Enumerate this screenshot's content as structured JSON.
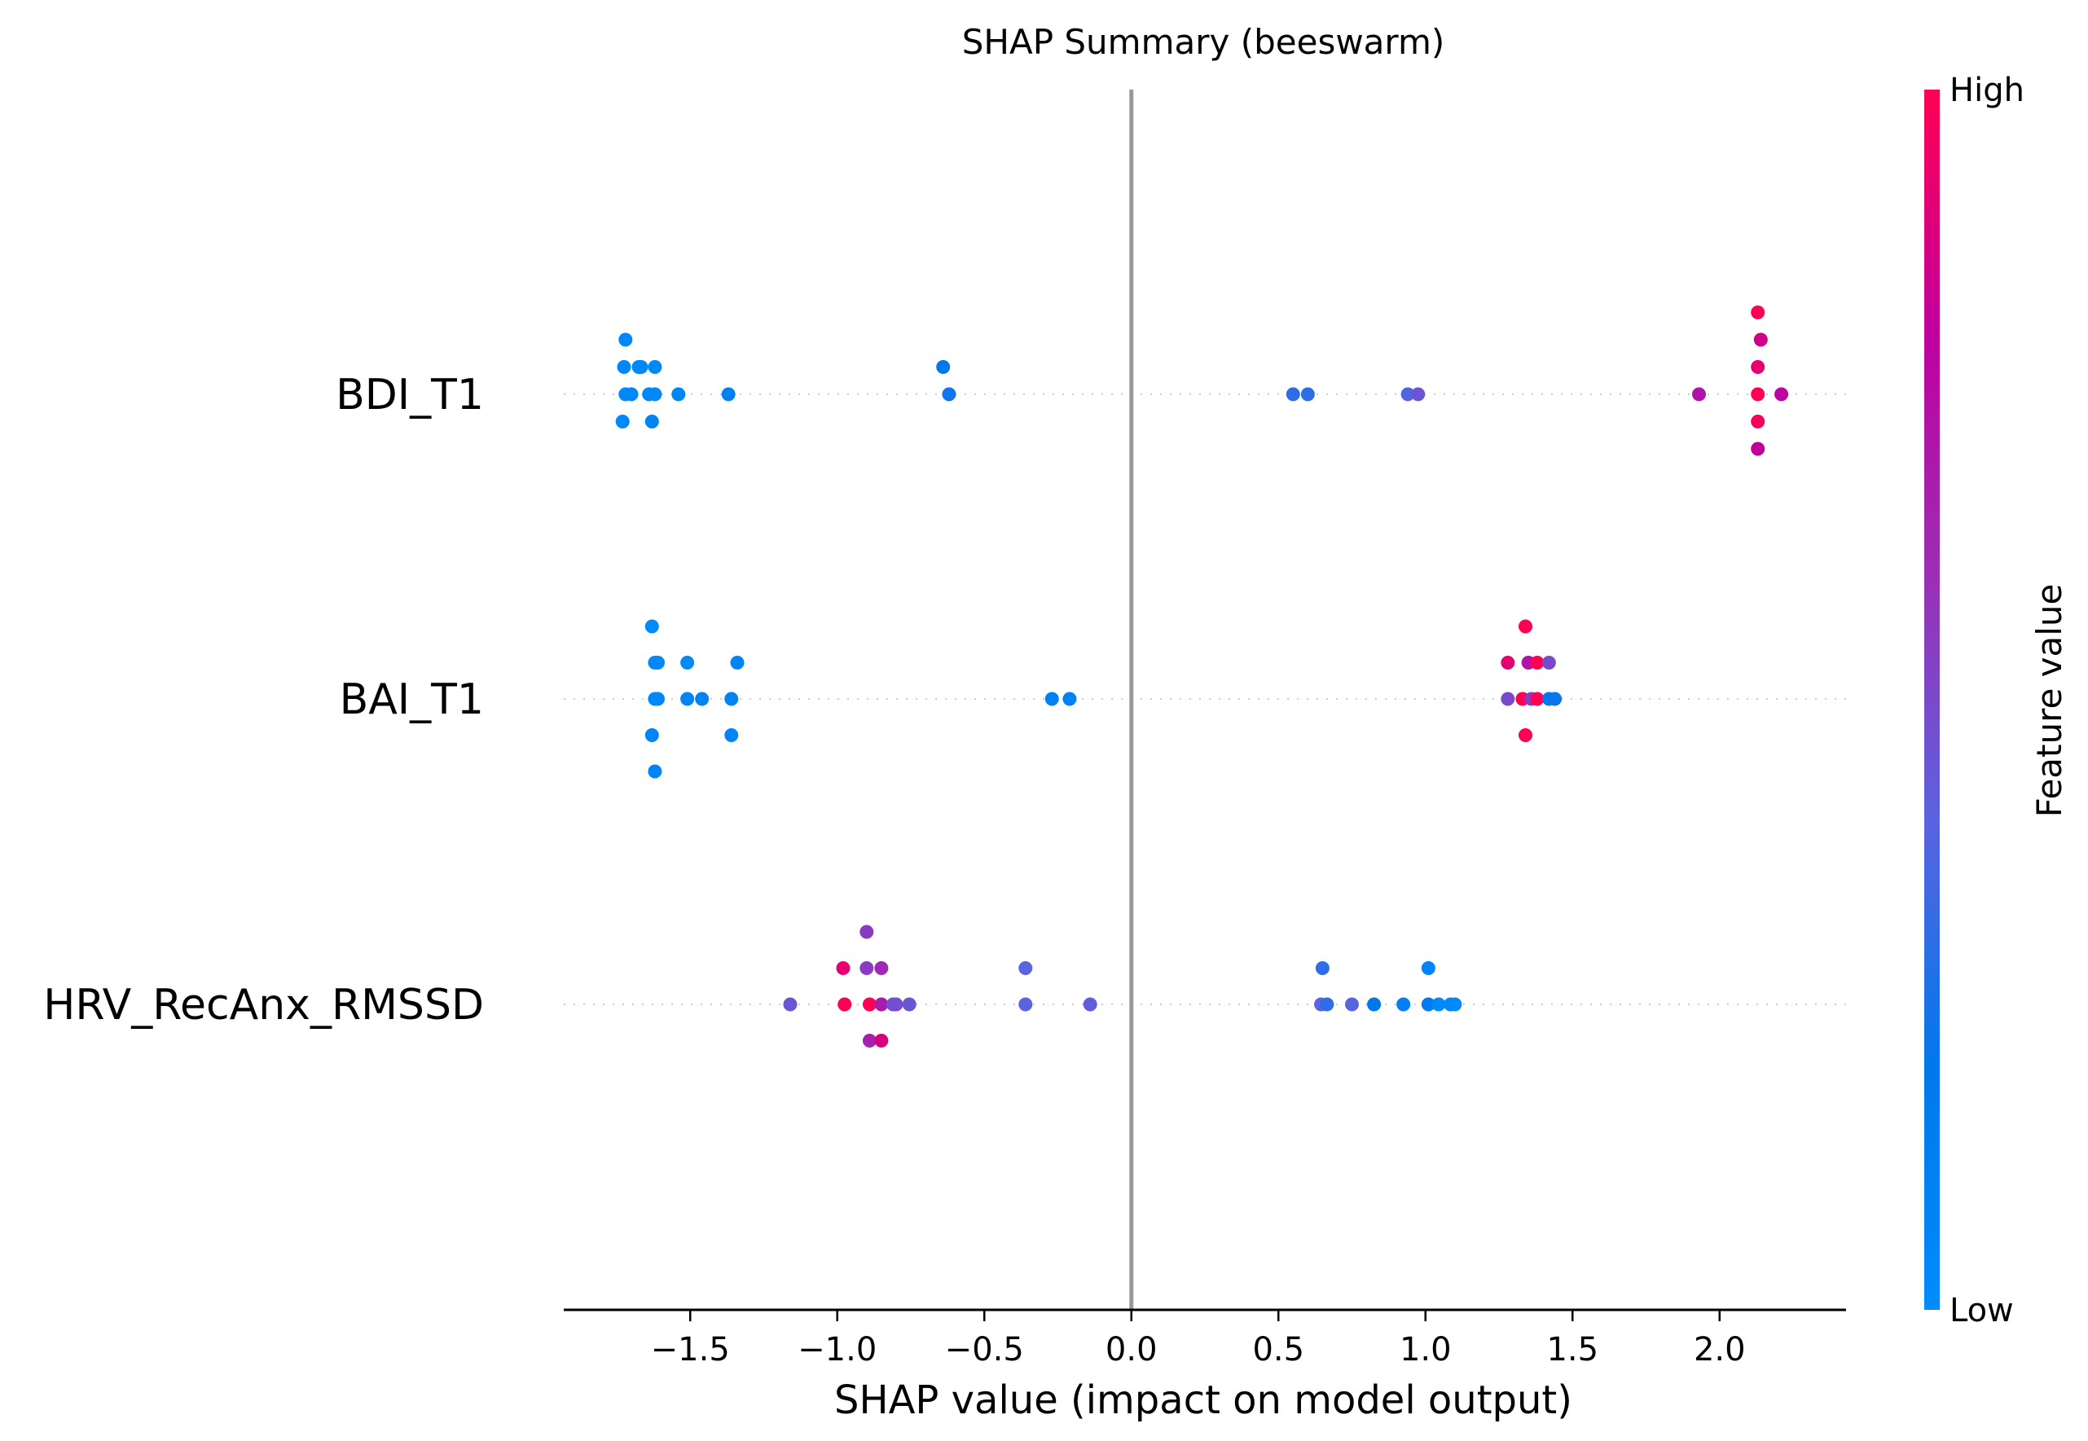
{
  "chart_data": {
    "type": "scatter",
    "subtype": "beeswarm",
    "title": "SHAP Summary (beeswarm)",
    "xlabel": "SHAP value (impact on model output)",
    "ylabel": "",
    "xlim": [
      -1.93,
      2.43
    ],
    "xticks": [
      -1.5,
      -1.0,
      -0.5,
      0.0,
      0.5,
      1.0,
      1.5,
      2.0
    ],
    "xtick_labels": [
      "−1.5",
      "−1.0",
      "−0.5",
      "0.0",
      "0.5",
      "1.0",
      "1.5",
      "2.0"
    ],
    "zero_line": 0.0,
    "grid": false,
    "colorbar": {
      "label": "Feature value",
      "high_label": "High",
      "low_label": "Low",
      "colors": [
        "#008bfb",
        "#0078ec",
        "#5a63e0",
        "#9a2fb5",
        "#c0009d",
        "#ff0052"
      ]
    },
    "features": [
      {
        "name": "BDI_T1",
        "points": [
          {
            "x": -1.72,
            "level": -2,
            "fv": 0.03
          },
          {
            "x": -1.725,
            "level": -1,
            "fv": 0.04
          },
          {
            "x": -1.675,
            "level": -1,
            "fv": 0.03
          },
          {
            "x": -1.667,
            "level": -1,
            "fv": 0.04
          },
          {
            "x": -1.62,
            "level": -1,
            "fv": 0.03
          },
          {
            "x": -1.72,
            "level": 0,
            "fv": 0.03
          },
          {
            "x": -1.7,
            "level": 0,
            "fv": 0.04
          },
          {
            "x": -1.64,
            "level": 0,
            "fv": 0.03
          },
          {
            "x": -1.62,
            "level": 0,
            "fv": 0.04
          },
          {
            "x": -1.54,
            "level": 0,
            "fv": 0.06
          },
          {
            "x": -1.37,
            "level": 0,
            "fv": 0.12
          },
          {
            "x": -1.73,
            "level": 1,
            "fv": 0.02
          },
          {
            "x": -1.63,
            "level": 1,
            "fv": 0.08
          },
          {
            "x": -0.64,
            "level": -1,
            "fv": 0.2
          },
          {
            "x": -0.62,
            "level": 0,
            "fv": 0.24
          },
          {
            "x": 0.55,
            "level": 0,
            "fv": 0.3
          },
          {
            "x": 0.6,
            "level": 0,
            "fv": 0.3
          },
          {
            "x": 0.94,
            "level": 0,
            "fv": 0.38
          },
          {
            "x": 0.975,
            "level": 0,
            "fv": 0.45
          },
          {
            "x": 1.93,
            "level": 0,
            "fv": 0.72
          },
          {
            "x": 2.13,
            "level": -3,
            "fv": 1.0
          },
          {
            "x": 2.14,
            "level": -2,
            "fv": 0.85
          },
          {
            "x": 2.13,
            "level": -1,
            "fv": 0.92
          },
          {
            "x": 2.13,
            "level": 0,
            "fv": 1.0
          },
          {
            "x": 2.21,
            "level": 0,
            "fv": 0.78
          },
          {
            "x": 2.13,
            "level": 1,
            "fv": 0.98
          },
          {
            "x": 2.13,
            "level": 2,
            "fv": 0.8
          }
        ]
      },
      {
        "name": "BAI_T1",
        "points": [
          {
            "x": -1.63,
            "level": -2,
            "fv": 0.02
          },
          {
            "x": -1.62,
            "level": -1,
            "fv": 0.02
          },
          {
            "x": -1.61,
            "level": -1,
            "fv": 0.02
          },
          {
            "x": -1.51,
            "level": -1,
            "fv": 0.02
          },
          {
            "x": -1.34,
            "level": -1,
            "fv": 0.08
          },
          {
            "x": -1.62,
            "level": 0,
            "fv": 0.04
          },
          {
            "x": -1.61,
            "level": 0,
            "fv": 0.04
          },
          {
            "x": -1.51,
            "level": 0,
            "fv": 0.07
          },
          {
            "x": -1.46,
            "level": 0,
            "fv": 0.08
          },
          {
            "x": -1.36,
            "level": 0,
            "fv": 0.08
          },
          {
            "x": -1.63,
            "level": 1,
            "fv": 0.06
          },
          {
            "x": -1.36,
            "level": 1,
            "fv": 0.07
          },
          {
            "x": -1.62,
            "level": 2,
            "fv": 0.07
          },
          {
            "x": -0.27,
            "level": 0,
            "fv": 0.1
          },
          {
            "x": -0.21,
            "level": 0,
            "fv": 0.1
          },
          {
            "x": 1.34,
            "level": -2,
            "fv": 1.0
          },
          {
            "x": 1.28,
            "level": -1,
            "fv": 0.92
          },
          {
            "x": 1.35,
            "level": -1,
            "fv": 0.72
          },
          {
            "x": 1.38,
            "level": -1,
            "fv": 1.0
          },
          {
            "x": 1.42,
            "level": -1,
            "fv": 0.5
          },
          {
            "x": 1.28,
            "level": 0,
            "fv": 0.5
          },
          {
            "x": 1.33,
            "level": 0,
            "fv": 1.0
          },
          {
            "x": 1.36,
            "level": 0,
            "fv": 0.55
          },
          {
            "x": 1.38,
            "level": 0,
            "fv": 1.0
          },
          {
            "x": 1.42,
            "level": 0,
            "fv": 0.22
          },
          {
            "x": 1.44,
            "level": 0,
            "fv": 0.22
          },
          {
            "x": 1.34,
            "level": 1,
            "fv": 1.0
          }
        ]
      },
      {
        "name": "HRV_RecAnx_RMSSD",
        "points": [
          {
            "x": -0.9,
            "level": -2,
            "fv": 0.55
          },
          {
            "x": -0.98,
            "level": -1,
            "fv": 0.92
          },
          {
            "x": -0.9,
            "level": -1,
            "fv": 0.55
          },
          {
            "x": -0.85,
            "level": -1,
            "fv": 0.62
          },
          {
            "x": -0.36,
            "level": -1,
            "fv": 0.4
          },
          {
            "x": -1.16,
            "level": 0,
            "fv": 0.45
          },
          {
            "x": -0.975,
            "level": 0,
            "fv": 1.0
          },
          {
            "x": -0.89,
            "level": 0,
            "fv": 1.0
          },
          {
            "x": -0.85,
            "level": 0,
            "fv": 0.68
          },
          {
            "x": -0.81,
            "level": 0,
            "fv": 0.48
          },
          {
            "x": -0.8,
            "level": 0,
            "fv": 0.48
          },
          {
            "x": -0.755,
            "level": 0,
            "fv": 0.45
          },
          {
            "x": -0.36,
            "level": 0,
            "fv": 0.4
          },
          {
            "x": -0.14,
            "level": 0,
            "fv": 0.42
          },
          {
            "x": -0.89,
            "level": 1,
            "fv": 0.66
          },
          {
            "x": -0.85,
            "level": 1,
            "fv": 0.88
          },
          {
            "x": 0.65,
            "level": -1,
            "fv": 0.3
          },
          {
            "x": 1.01,
            "level": -1,
            "fv": 0.06
          },
          {
            "x": 0.645,
            "level": 0,
            "fv": 0.4
          },
          {
            "x": 0.665,
            "level": 0,
            "fv": 0.3
          },
          {
            "x": 0.75,
            "level": 0,
            "fv": 0.4
          },
          {
            "x": 0.825,
            "level": 0,
            "fv": 0.2
          },
          {
            "x": 0.925,
            "level": 0,
            "fv": 0.12
          },
          {
            "x": 1.01,
            "level": 0,
            "fv": 0.18
          },
          {
            "x": 1.045,
            "level": 0,
            "fv": 0.02
          },
          {
            "x": 1.085,
            "level": 0,
            "fv": 0.04
          },
          {
            "x": 1.1,
            "level": 0,
            "fv": 0.02
          }
        ]
      }
    ]
  }
}
